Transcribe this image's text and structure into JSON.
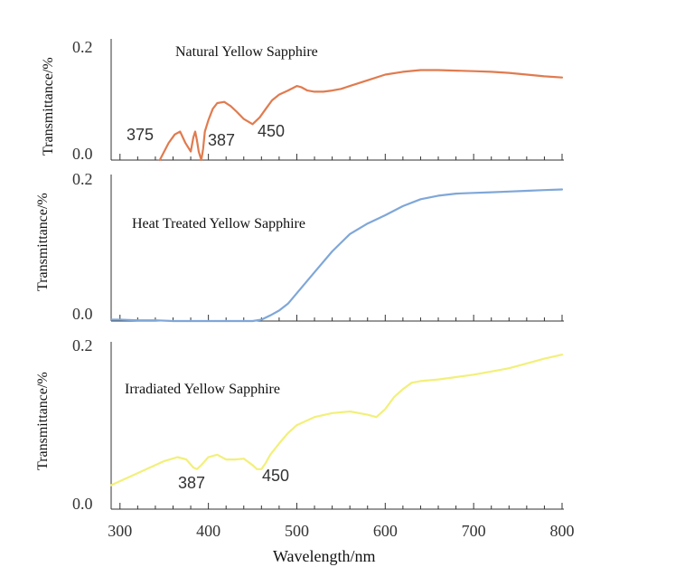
{
  "chart_data": {
    "type": "line",
    "xlabel": "Wavelength/nm",
    "xlim": [
      290,
      800
    ],
    "x_ticks": [
      300,
      400,
      500,
      600,
      700,
      800
    ],
    "panels": [
      {
        "title": "Natural Yellow Sapphire",
        "ylabel": "Transmittance/%",
        "ylim": [
          0,
          0.2
        ],
        "y_ticks": [
          "0.2",
          "0.0"
        ],
        "color": "#E07B4F",
        "annotations": [
          {
            "text": "375",
            "x": 375,
            "y": 0.02
          },
          {
            "text": "387",
            "x": 400,
            "y": 0.015
          },
          {
            "text": "450",
            "x": 465,
            "y": 0.025
          }
        ],
        "series": {
          "x": [
            345,
            355,
            362,
            368,
            374,
            380,
            383,
            385,
            387,
            389,
            392,
            394,
            396,
            400,
            405,
            410,
            418,
            425,
            432,
            440,
            450,
            458,
            465,
            472,
            480,
            490,
            500,
            505,
            512,
            520,
            530,
            540,
            550,
            560,
            580,
            600,
            620,
            640,
            660,
            680,
            700,
            720,
            740,
            760,
            780,
            800
          ],
          "y": [
            0.0,
            0.03,
            0.045,
            0.05,
            0.03,
            0.015,
            0.04,
            0.05,
            0.035,
            0.015,
            0.0,
            0.02,
            0.05,
            0.07,
            0.09,
            0.1,
            0.102,
            0.095,
            0.085,
            0.072,
            0.063,
            0.075,
            0.09,
            0.105,
            0.115,
            0.122,
            0.13,
            0.128,
            0.122,
            0.12,
            0.12,
            0.122,
            0.125,
            0.13,
            0.14,
            0.15,
            0.155,
            0.158,
            0.158,
            0.157,
            0.156,
            0.155,
            0.153,
            0.15,
            0.147,
            0.145
          ]
        }
      },
      {
        "title": "Heat Treated Yellow Sapphire",
        "ylabel": "Transmittance/%",
        "ylim": [
          0,
          0.2
        ],
        "y_ticks": [
          "0.2",
          "0.0"
        ],
        "color": "#7FA7D8",
        "annotations": [],
        "series": {
          "x": [
            290,
            300,
            320,
            340,
            360,
            380,
            400,
            420,
            440,
            450,
            460,
            470,
            480,
            490,
            500,
            510,
            520,
            540,
            560,
            580,
            600,
            620,
            640,
            660,
            680,
            700,
            720,
            740,
            760,
            780,
            800
          ],
          "y": [
            0.002,
            0.002,
            0.001,
            0.001,
            0.0,
            0.0,
            0.0,
            0.0,
            0.0,
            0.0,
            0.002,
            0.008,
            0.015,
            0.025,
            0.04,
            0.055,
            0.07,
            0.1,
            0.125,
            0.14,
            0.152,
            0.165,
            0.175,
            0.18,
            0.183,
            0.184,
            0.185,
            0.186,
            0.187,
            0.188,
            0.189
          ]
        }
      },
      {
        "title": "Irradiated Yellow Sapphire",
        "ylabel": "Transmittance/%",
        "ylim": [
          0,
          0.2
        ],
        "y_ticks": [
          "0.2",
          "0.0"
        ],
        "color": "#F2F07A",
        "annotations": [
          {
            "text": "387",
            "x": 395,
            "y": 0.01
          },
          {
            "text": "450",
            "x": 485,
            "y": 0.015
          }
        ],
        "series": {
          "x": [
            290,
            310,
            330,
            350,
            365,
            375,
            383,
            387,
            392,
            400,
            410,
            420,
            430,
            440,
            450,
            455,
            460,
            465,
            470,
            480,
            490,
            500,
            520,
            540,
            560,
            580,
            590,
            600,
            610,
            620,
            630,
            640,
            660,
            680,
            700,
            720,
            740,
            760,
            780,
            800
          ],
          "y": [
            0.03,
            0.04,
            0.05,
            0.06,
            0.065,
            0.062,
            0.052,
            0.05,
            0.055,
            0.065,
            0.068,
            0.062,
            0.062,
            0.063,
            0.055,
            0.05,
            0.05,
            0.058,
            0.068,
            0.082,
            0.095,
            0.105,
            0.115,
            0.12,
            0.122,
            0.118,
            0.115,
            0.125,
            0.14,
            0.15,
            0.158,
            0.16,
            0.162,
            0.165,
            0.168,
            0.172,
            0.176,
            0.182,
            0.188,
            0.193
          ]
        }
      }
    ]
  }
}
